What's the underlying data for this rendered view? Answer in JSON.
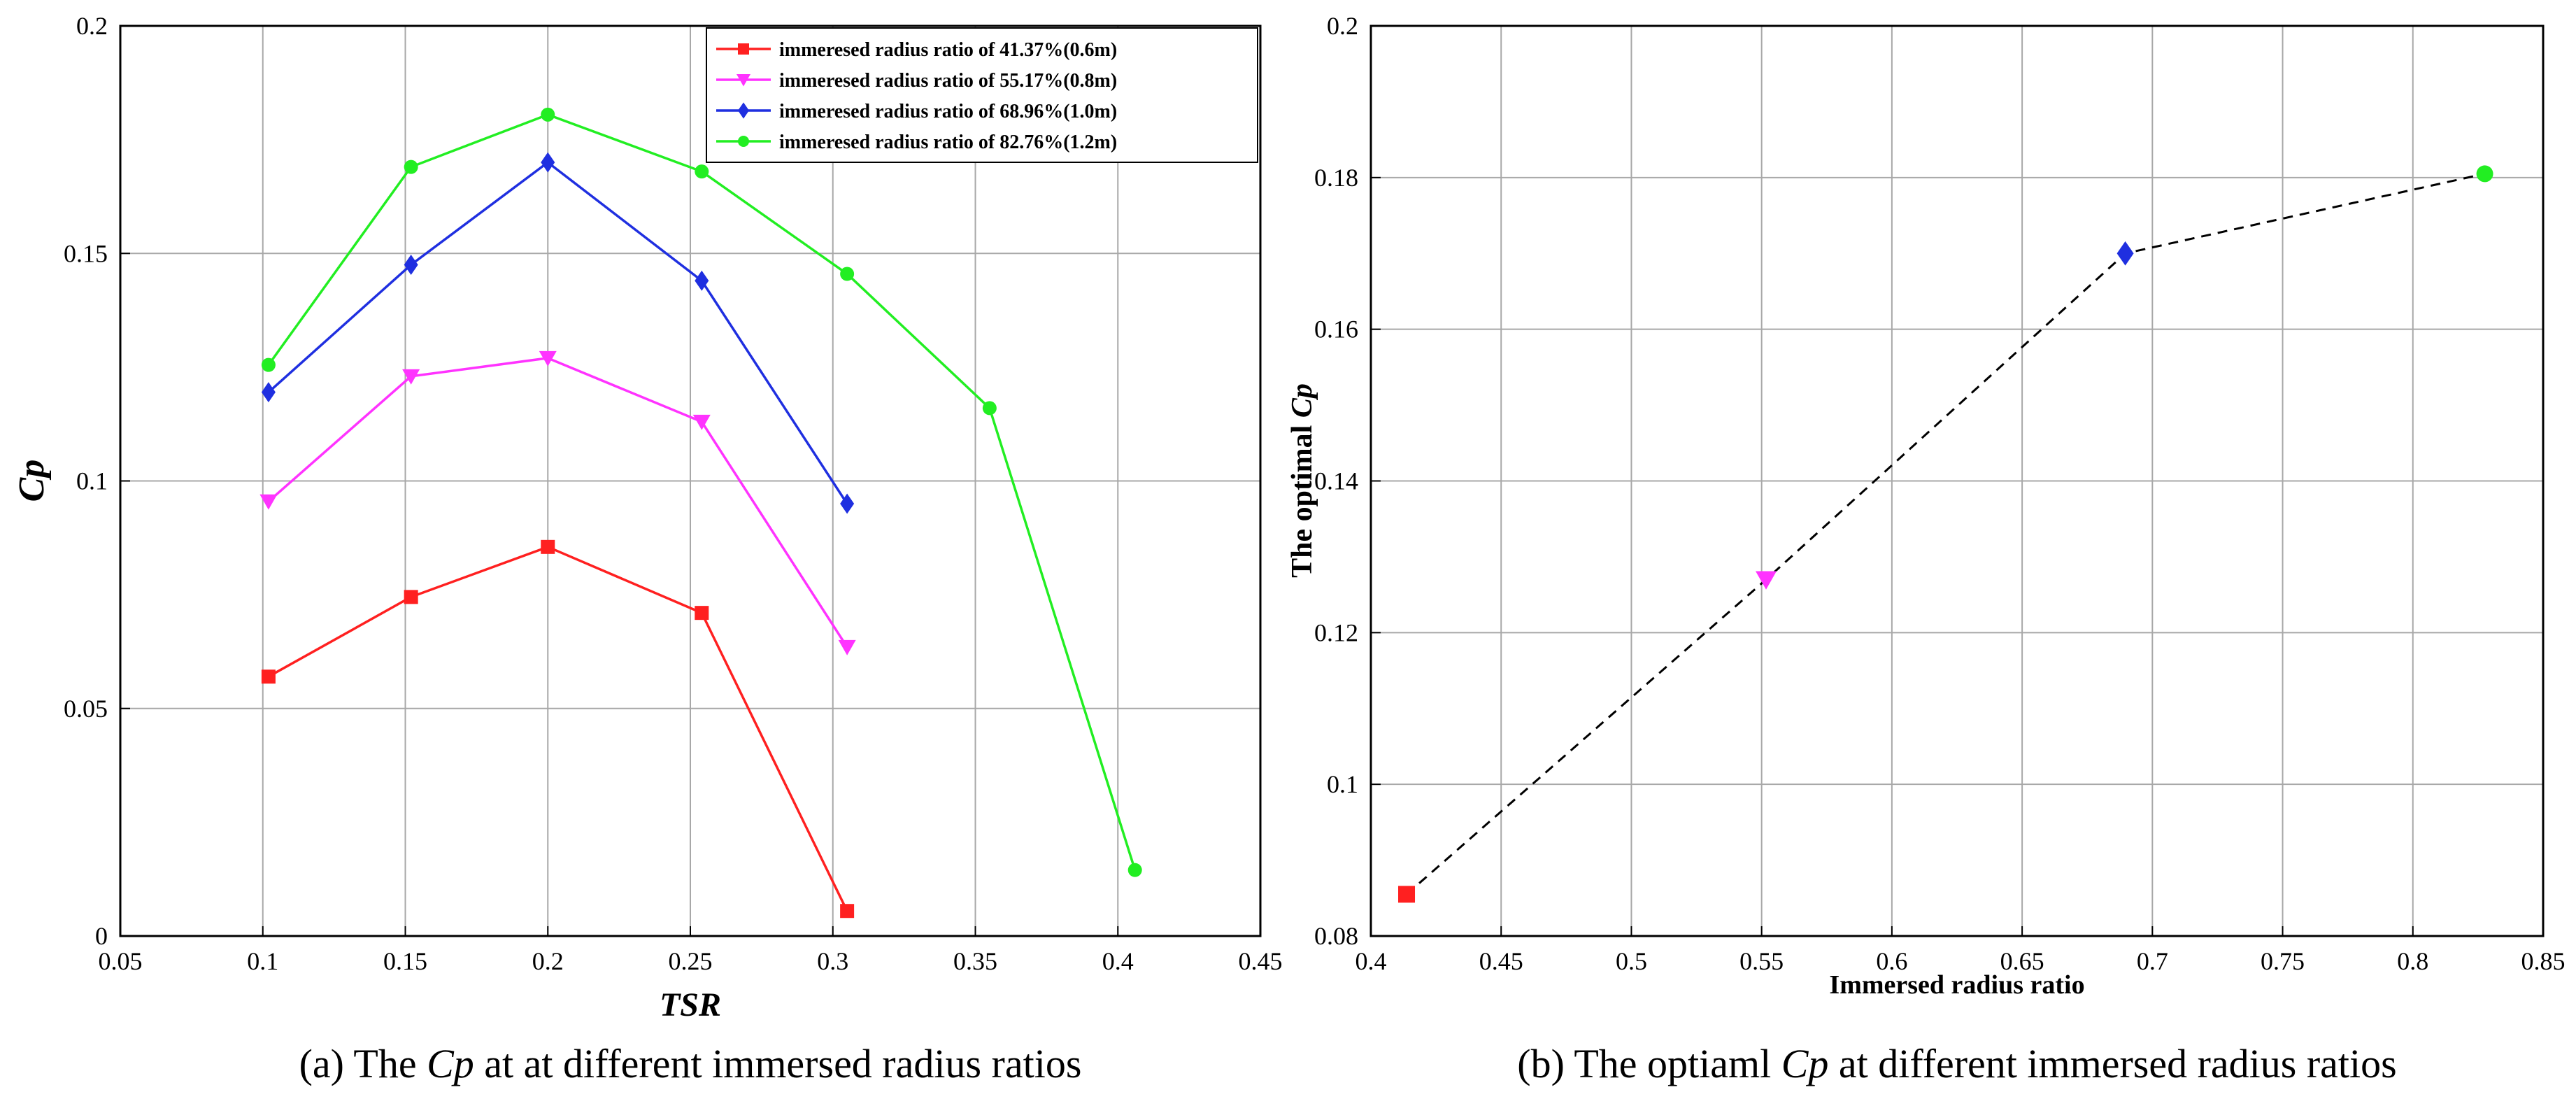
{
  "chart_data": [
    {
      "type": "line",
      "caption_prefix": "(a) The ",
      "caption_italic": "Cp",
      "caption_suffix": " at at different immersed radius ratios",
      "xlabel": "TSR",
      "ylabel": "Cp",
      "xlim": [
        0.05,
        0.45
      ],
      "ylim": [
        0,
        0.2
      ],
      "xticks": [
        "0.05",
        "0.1",
        "0.15",
        "0.2",
        "0.25",
        "0.3",
        "0.35",
        "0.4",
        "0.45"
      ],
      "yticks": [
        "0",
        "0.05",
        "0.1",
        "0.15",
        "0.2"
      ],
      "grid": true,
      "legend_position": "top-right",
      "series": [
        {
          "name": "immeresed radius ratio of 41.37%(0.6m)",
          "color": "#ff2020",
          "marker": "square",
          "x": [
            0.102,
            0.152,
            0.2,
            0.254,
            0.305
          ],
          "y": [
            0.057,
            0.0745,
            0.0855,
            0.071,
            0.0055
          ]
        },
        {
          "name": "immeresed radius ratio of 55.17%(0.8m)",
          "color": "#ff33ff",
          "marker": "triangle-down",
          "x": [
            0.102,
            0.152,
            0.2,
            0.254,
            0.305
          ],
          "y": [
            0.0955,
            0.123,
            0.127,
            0.113,
            0.0635
          ]
        },
        {
          "name": "immeresed radius ratio of 68.96%(1.0m)",
          "color": "#1f2fe0",
          "marker": "diamond",
          "x": [
            0.102,
            0.152,
            0.2,
            0.254,
            0.305
          ],
          "y": [
            0.1195,
            0.1475,
            0.17,
            0.144,
            0.095
          ]
        },
        {
          "name": "immeresed radius ratio of 82.76%(1.2m)",
          "color": "#22ee22",
          "marker": "circle",
          "x": [
            0.102,
            0.152,
            0.2,
            0.254,
            0.305,
            0.355,
            0.406
          ],
          "y": [
            0.1255,
            0.169,
            0.1805,
            0.168,
            0.1455,
            0.116,
            0.0145
          ]
        }
      ]
    },
    {
      "type": "line",
      "caption_prefix": "(b) The optiaml ",
      "caption_italic": "Cp",
      "caption_suffix": " at different immersed radius ratios",
      "xlabel": "Immersed radius ratio",
      "ylabel_prefix": "The optimal ",
      "ylabel_italic": "Cp",
      "xlim": [
        0.4,
        0.85
      ],
      "ylim": [
        0.08,
        0.2
      ],
      "xticks": [
        "0.4",
        "0.45",
        "0.5",
        "0.55",
        "0.6",
        "0.65",
        "0.7",
        "0.75",
        "0.8",
        "0.85"
      ],
      "yticks": [
        "0.08",
        "0.1",
        "0.12",
        "0.14",
        "0.16",
        "0.18",
        "0.2"
      ],
      "grid": true,
      "line_color": "#000000",
      "line_style": "dashed",
      "points": [
        {
          "x": 0.4137,
          "y": 0.0855,
          "marker": "square",
          "color": "#ff2020"
        },
        {
          "x": 0.5517,
          "y": 0.127,
          "marker": "triangle-down",
          "color": "#ff33ff"
        },
        {
          "x": 0.6896,
          "y": 0.17,
          "marker": "diamond",
          "color": "#1f2fe0"
        },
        {
          "x": 0.8276,
          "y": 0.1805,
          "marker": "circle",
          "color": "#22ee22"
        }
      ]
    }
  ]
}
